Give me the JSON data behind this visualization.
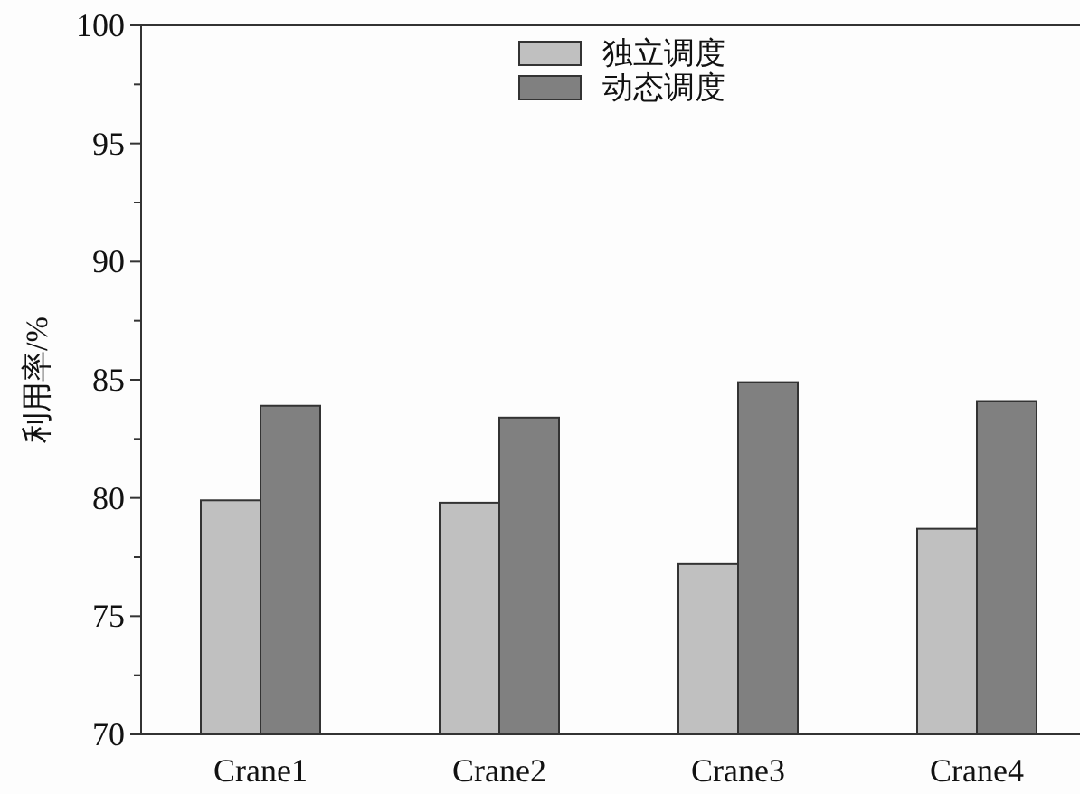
{
  "chart_data": {
    "type": "bar",
    "ylabel": "利用率/%",
    "categories": [
      "Crane1",
      "Crane2",
      "Crane3",
      "Crane4"
    ],
    "series": [
      {
        "name": "独立调度",
        "color": "#c0c0c0",
        "values": [
          79.9,
          79.8,
          77.2,
          78.7
        ]
      },
      {
        "name": "动态调度",
        "color": "#808080",
        "values": [
          83.9,
          83.4,
          84.9,
          84.1
        ]
      }
    ],
    "ylim": [
      70,
      100
    ],
    "yticks": [
      70,
      {
        "value": 72.5,
        "label": null
      },
      75,
      {
        "value": 77.5,
        "label": null
      },
      80,
      {
        "value": 82.5,
        "label": null
      },
      85,
      {
        "value": 87.5,
        "label": null
      },
      90,
      {
        "value": 92.5,
        "label": null
      },
      95,
      {
        "value": 97.5,
        "label": null
      },
      100
    ],
    "grid": false,
    "legend": "top"
  }
}
